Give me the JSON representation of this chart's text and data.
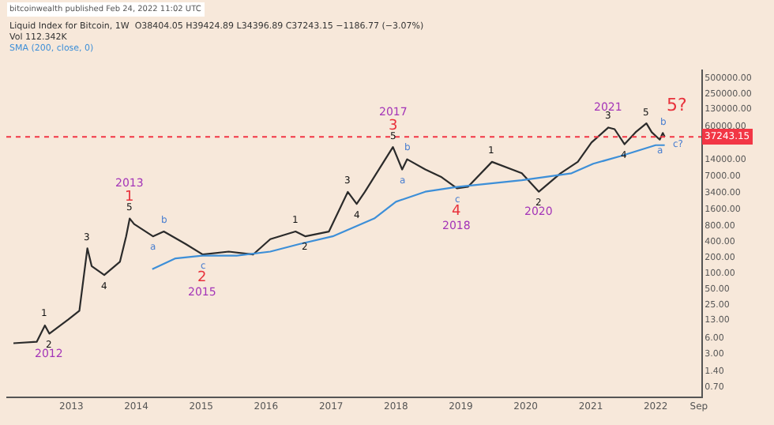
{
  "chart_data": {
    "type": "line",
    "title": "Liquid Index for Bitcoin, 1W  O38404.05 H39424.89 L34396.89 C37243.15 −1186.77 (−3.07%)",
    "subtitle": "Vol 112.342K",
    "annotations": [
      "bitcoinwealth published Feb 24, 2022 11:02 UTC",
      "5?",
      {
        "text": "1",
        "x": "2012-08-05",
        "y": 10
      },
      {
        "text": "2",
        "x": "2012-08-30",
        "y": 7
      },
      {
        "text": "2012",
        "x": "2012-08-30",
        "y": 7
      },
      {
        "text": "3",
        "x": "2013-04-01",
        "y": 289
      },
      {
        "text": "4",
        "x": "2013-07-05",
        "y": 90
      },
      {
        "text": "5",
        "x": "2013-11-25",
        "y": 1057
      },
      {
        "text": "1",
        "x": "2013-11-25",
        "y": 1057
      },
      {
        "text": "2013",
        "x": "2013-11-25",
        "y": 1057
      },
      {
        "text": "a",
        "x": "2014-04-05",
        "y": 486
      },
      {
        "text": "b",
        "x": "2014-06-05",
        "y": 600
      },
      {
        "text": "c",
        "x": "2015-01-10",
        "y": 220
      },
      {
        "text": "2",
        "x": "2015-01-10",
        "y": 220
      },
      {
        "text": "2015",
        "x": "2015-01-10",
        "y": 220
      },
      {
        "text": "1",
        "x": "2016-06-15",
        "y": 600
      },
      {
        "text": "2",
        "x": "2016-08-10",
        "y": 486
      },
      {
        "text": "3",
        "x": "2017-04-05",
        "y": 3370
      },
      {
        "text": "4",
        "x": "2017-05-25",
        "y": 2000
      },
      {
        "text": "5",
        "x": "2017-12-15",
        "y": 23800
      },
      {
        "text": "3",
        "x": "2017-12-15",
        "y": 23800
      },
      {
        "text": "2017",
        "x": "2017-12-15",
        "y": 23800
      },
      {
        "text": "a",
        "x": "2018-02-05",
        "y": 8950
      },
      {
        "text": "b",
        "x": "2018-03-05",
        "y": 14000
      },
      {
        "text": "c",
        "x": "2018-12-10",
        "y": 3940
      },
      {
        "text": "4",
        "x": "2018-12-10",
        "y": 3940
      },
      {
        "text": "2018",
        "x": "2018-12-10",
        "y": 3940
      },
      {
        "text": "1",
        "x": "2019-06-25",
        "y": 12500
      },
      {
        "text": "2",
        "x": "2020-03-15",
        "y": 3400
      },
      {
        "text": "2020",
        "x": "2020-03-15",
        "y": 3400
      },
      {
        "text": "3",
        "x": "2021-04-10",
        "y": 55800
      },
      {
        "text": "2021",
        "x": "2021-04-10",
        "y": 55800
      },
      {
        "text": "4",
        "x": "2021-07-10",
        "y": 27000
      },
      {
        "text": "5",
        "x": "2021-11-10",
        "y": 67000
      },
      {
        "text": "a",
        "x": "2022-01-24",
        "y": 33000
      },
      {
        "text": "b",
        "x": "2022-02-10",
        "y": 44000
      },
      {
        "text": "c?",
        "x": "2022-02-21",
        "y": 25900
      }
    ],
    "series": [
      {
        "color": "#2b2b2b",
        "x": [
          "2012-02-10",
          "2012-06-20",
          "2012-08-05",
          "2012-08-30",
          "2012-12-15",
          "2013-02-15",
          "2013-04-01",
          "2013-04-25",
          "2013-07-05",
          "2013-10-01",
          "2013-11-05",
          "2013-11-25",
          "2013-12-20",
          "2014-04-05",
          "2014-06-05",
          "2014-10-05",
          "2015-01-10",
          "2015-06-05",
          "2015-10-20",
          "2016-01-25",
          "2016-06-15",
          "2016-08-10",
          "2016-12-20",
          "2017-04-05",
          "2017-05-25",
          "2017-07-10",
          "2017-12-15",
          "2018-02-05",
          "2018-03-05",
          "2018-06-15",
          "2018-09-15",
          "2018-12-10",
          "2019-02-10",
          "2019-06-25",
          "2019-12-10",
          "2020-03-15",
          "2020-07-15",
          "2020-10-20",
          "2021-01-05",
          "2021-04-10",
          "2021-05-15",
          "2021-07-10",
          "2021-09-10",
          "2021-11-10",
          "2021-12-10",
          "2022-01-24",
          "2022-02-10",
          "2022-02-21"
        ],
        "values": [
          4.6,
          4.9,
          10,
          7,
          13,
          19,
          289,
          133,
          90,
          160,
          486,
          1057,
          830,
          486,
          600,
          350,
          220,
          250,
          220,
          430,
          600,
          486,
          600,
          3370,
          2000,
          3370,
          23800,
          8950,
          14000,
          8950,
          6400,
          3940,
          4220,
          12500,
          7600,
          3400,
          7600,
          12500,
          29000,
          55800,
          52000,
          27000,
          45500,
          67000,
          45500,
          33000,
          44000,
          37243.15
        ]
      },
      {
        "name": "SMA (200, close, 0)",
        "color": "#3d8fd8",
        "x": [
          "2014-04-01",
          "2014-08-10",
          "2015-01-10",
          "2015-07-20",
          "2016-01-25",
          "2016-07-10",
          "2017-01-10",
          "2017-09-01",
          "2018-01-01",
          "2018-06-15",
          "2018-12-10",
          "2019-12-10",
          "2020-09-15",
          "2021-01-15",
          "2021-06-15",
          "2022-01-01",
          "2022-02-21"
        ],
        "values": [
          116,
          186,
          210,
          210,
          250,
          350,
          486,
          1060,
          2200,
          3400,
          4200,
          5600,
          7600,
          11500,
          16000,
          25900,
          25900
        ]
      }
    ],
    "log": "y",
    "ylim": [
      0.45,
      700000
    ],
    "yticks": [
      {
        "value": 500000,
        "label": "500000.00"
      },
      {
        "value": 250000,
        "label": "250000.00"
      },
      {
        "value": 130000,
        "label": "130000.00"
      },
      {
        "value": 60000,
        "label": "60000.00"
      },
      {
        "value": 14000,
        "label": "14000.00"
      },
      {
        "value": 7000,
        "label": "7000.00"
      },
      {
        "value": 3400,
        "label": "3400.00"
      },
      {
        "value": 1600,
        "label": "1600.00"
      },
      {
        "value": 800,
        "label": "800.00"
      },
      {
        "value": 400,
        "label": "400.00"
      },
      {
        "value": 200,
        "label": "200.00"
      },
      {
        "value": 100,
        "label": "100.00"
      },
      {
        "value": 50,
        "label": "50.00"
      },
      {
        "value": 25,
        "label": "25.00"
      },
      {
        "value": 13,
        "label": "13.00"
      },
      {
        "value": 6,
        "label": "6.00"
      },
      {
        "value": 3,
        "label": "3.00"
      },
      {
        "value": 1.4,
        "label": "1.40"
      },
      {
        "value": 0.7,
        "label": "0.70"
      }
    ],
    "xlim": [
      "2012-01-01",
      "2022-09-15"
    ],
    "xticks": [
      {
        "value": "2013-01-01",
        "label": "2013"
      },
      {
        "value": "2014-01-01",
        "label": "2014"
      },
      {
        "value": "2015-01-01",
        "label": "2015"
      },
      {
        "value": "2016-01-01",
        "label": "2016"
      },
      {
        "value": "2017-01-01",
        "label": "2017"
      },
      {
        "value": "2018-01-01",
        "label": "2018"
      },
      {
        "value": "2019-01-01",
        "label": "2019"
      },
      {
        "value": "2020-01-01",
        "label": "2020"
      },
      {
        "value": "2021-01-01",
        "label": "2021"
      },
      {
        "value": "2022-01-01",
        "label": "2022"
      },
      {
        "value": "2022-09-01",
        "label": "Sep"
      }
    ],
    "ref_lines": [
      {
        "axis": "y",
        "value": 37243.15,
        "label": "37243.15",
        "color": "#f23645",
        "line_style": "dotted"
      }
    ]
  }
}
